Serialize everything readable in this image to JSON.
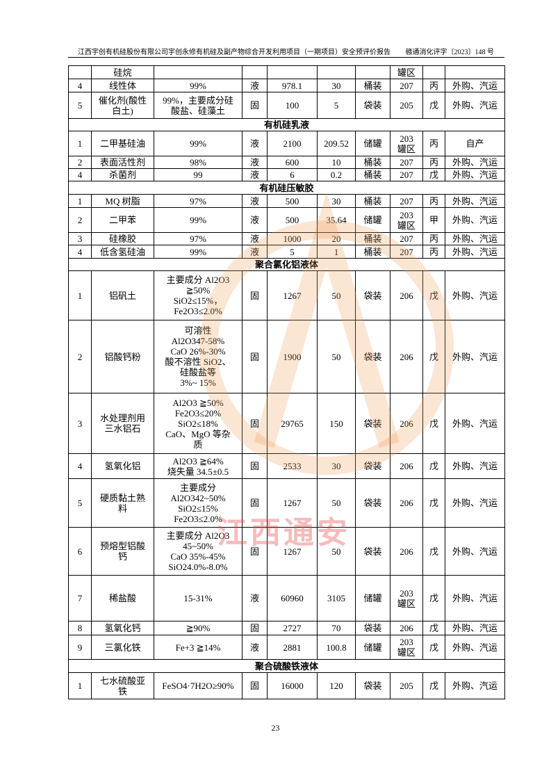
{
  "header": {
    "left": "江西宇创有机硅股份有限公司宇创永修有机硅及副产物综合开发利用项目（一期项目）安全预评价报告",
    "right": "赣通消化评字〔2023〕148 号"
  },
  "table": {
    "rows": [
      [
        null,
        "硅烷",
        null,
        null,
        null,
        null,
        null,
        "罐区",
        null,
        null
      ],
      [
        "4",
        "线性体",
        "99%",
        "液",
        "978.1",
        "30",
        "桶装",
        "207",
        "丙",
        "外购、汽运"
      ],
      [
        "5",
        "催化剂(酸性\n白土)",
        "99%，主要成分硅\n酸盐、硅藻土",
        "固",
        "100",
        "5",
        "袋装",
        "205",
        "戊",
        "外购、汽运"
      ],
      {
        "section": "有机硅乳液"
      },
      [
        "1",
        "二甲基硅油",
        "99%",
        "液",
        "2100",
        "209.52",
        "储罐",
        "203\n罐区",
        "丙",
        "自产"
      ],
      [
        "2",
        "表面活性剂",
        "98%",
        "液",
        "600",
        "10",
        "桶装",
        "207",
        "丙",
        "外购、汽运"
      ],
      [
        "4",
        "杀菌剂",
        "99",
        "液",
        "6",
        "0.2",
        "桶装",
        "207",
        "戊",
        "外购、汽运"
      ],
      {
        "section": "有机硅压敏胶"
      },
      [
        "1",
        "MQ 树脂",
        "97%",
        "液",
        "500",
        "30",
        "桶装",
        "207",
        "丙",
        "外购、汽运"
      ],
      [
        "2",
        "二甲苯",
        "99%",
        "液",
        "500",
        "35.64",
        "储罐",
        "203\n罐区",
        "甲",
        "外购、汽运"
      ],
      [
        "3",
        "硅橡胶",
        "97%",
        "液",
        "1000",
        "20",
        "桶装",
        "207",
        "丙",
        "外购、汽运"
      ],
      [
        "4",
        "低含氢硅油",
        "99%",
        "液",
        "5",
        "1",
        "桶装",
        "207",
        "丙",
        "外购、汽运"
      ],
      {
        "section": "聚合氯化铝液体"
      },
      [
        "1",
        "铝矾土",
        "主要成分 Al2O3\n≧50%\nSiO2≤15%，\nFe2O3≤2.0%",
        "固",
        "1267",
        "50",
        "袋装",
        "206",
        "戊",
        "外购、汽运"
      ],
      [
        "2",
        "铝酸钙粉",
        "可溶性\nAl2O347-58%\nCaO 26%-30%\n酸不溶性 SiO2、\n硅酸盐等\n3%~ 15%",
        "固",
        "1900",
        "50",
        "袋装",
        "206",
        "戊",
        "外购、汽运"
      ],
      [
        "3",
        "水处理剂用\n三水铝石",
        "Al2O3 ≧50%\nFe2O3≤20%\nSiO2≤18%\nCaO、MgO 等杂\n质",
        "固",
        "29765",
        "150",
        "袋装",
        "206",
        "戊",
        "外购、汽运"
      ],
      [
        "4",
        "氢氧化铝",
        "Al2O3 ≧64%\n烧失量 34.5±0.5",
        "固",
        "2533",
        "30",
        "袋装",
        "206",
        "戊",
        "外购、汽运"
      ],
      [
        "5",
        "硬质黏土熟\n料",
        "主要成分\nAl2O342~50%\nSiO2≤15%\nFe2O3≤2.0%",
        "固",
        "1267",
        "50",
        "袋装",
        "206",
        "戊",
        "外购、汽运"
      ],
      [
        "6",
        "预熔型铝酸\n钙",
        "主要成分 Al2O3\n45~50%\nCaO 35%-45%\nSiO24.0%-8.0%",
        "固",
        "1267",
        "50",
        "袋装",
        "206",
        "戊",
        "外购、汽运"
      ],
      [
        "7",
        "稀盐酸",
        "15-31%",
        "液",
        "60960",
        "3105",
        "储罐",
        "203\n罐区",
        "戊",
        "外购、汽运"
      ],
      [
        "8",
        "氢氧化钙",
        "≧90%",
        "固",
        "2727",
        "70",
        "袋装",
        "206",
        "戊",
        "外购、汽运"
      ],
      [
        "9",
        "三氯化铁",
        "Fe+3 ≧14%",
        "液",
        "2881",
        "100.8",
        "储罐",
        "203\n罐区",
        "戊",
        "外购、汽运"
      ],
      {
        "section": "聚合硫酸铁液体"
      },
      [
        "1",
        "七水硫酸亚\n铁",
        "FeSO4·7H2O≥90%",
        "固",
        "16000",
        "120",
        "袋装",
        "205",
        "戊",
        "外购、汽运"
      ]
    ]
  },
  "watermark": "江西通安",
  "footer": {
    "page": "23"
  }
}
